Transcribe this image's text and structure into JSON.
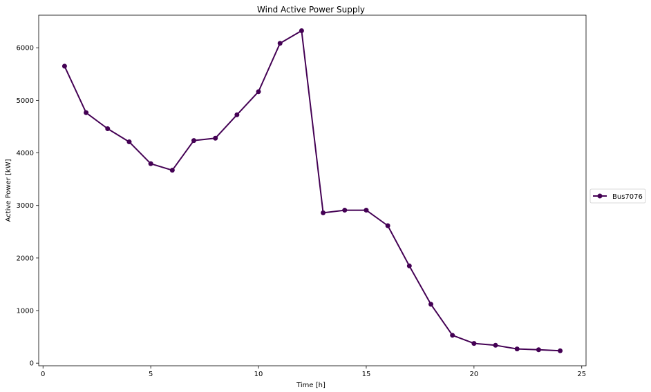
{
  "chart_data": {
    "type": "line",
    "title": "Wind Active Power Supply",
    "xlabel": "Time [h]",
    "ylabel": "Active Power [kW]",
    "xlim": [
      -0.2,
      25.2
    ],
    "ylim": [
      -50,
      6620
    ],
    "xticks": [
      0,
      5,
      10,
      15,
      20,
      25
    ],
    "yticks": [
      0,
      1000,
      2000,
      3000,
      4000,
      5000,
      6000
    ],
    "grid": false,
    "legend_position": "right",
    "series": [
      {
        "name": "Bus7076",
        "color": "#440154",
        "x": [
          1,
          2,
          3,
          4,
          5,
          6,
          7,
          8,
          9,
          10,
          11,
          12,
          13,
          14,
          15,
          16,
          17,
          18,
          19,
          20,
          21,
          22,
          23,
          24
        ],
        "y": [
          5650,
          4765,
          4460,
          4210,
          3795,
          3670,
          4235,
          4280,
          4725,
          5165,
          6085,
          6325,
          2860,
          2910,
          2910,
          2615,
          1850,
          1120,
          530,
          375,
          340,
          270,
          255,
          235
        ]
      }
    ]
  }
}
